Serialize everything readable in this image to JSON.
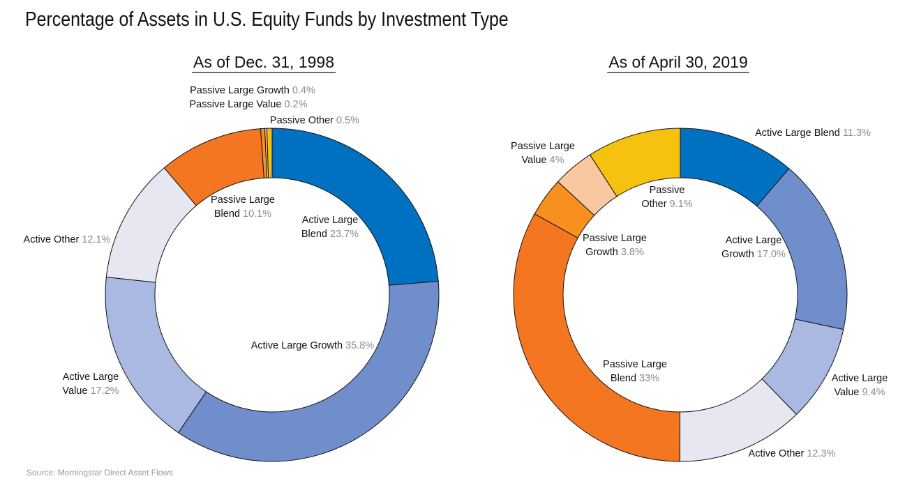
{
  "title": "Percentage of Assets in U.S. Equity Funds by Investment Type",
  "source": "Source: Morningstar Direct Asset Flows",
  "chart_data": [
    {
      "type": "pie",
      "subtitle": "As of Dec. 31, 1998",
      "slices": [
        {
          "name": "Active Large Blend",
          "value": 23.7,
          "pct_label": "23.7%",
          "color": "#0070c0"
        },
        {
          "name": "Active Large Growth",
          "value": 35.8,
          "pct_label": "35.8%",
          "color": "#718ecc"
        },
        {
          "name": "Active Large Value",
          "value": 17.2,
          "pct_label": "17.2%",
          "color": "#a9b9e2"
        },
        {
          "name": "Active Other",
          "value": 12.1,
          "pct_label": "12.1%",
          "color": "#e6e7f1"
        },
        {
          "name": "Passive Large Blend",
          "value": 10.1,
          "pct_label": "10.1%",
          "color": "#f47621"
        },
        {
          "name": "Passive Large Growth",
          "value": 0.4,
          "pct_label": "0.4%",
          "color": "#f7901e"
        },
        {
          "name": "Passive Large Value",
          "value": 0.2,
          "pct_label": "0.2%",
          "color": "#f9c8a0"
        },
        {
          "name": "Passive Other",
          "value": 0.5,
          "pct_label": "0.5%",
          "color": "#f5c20f"
        }
      ]
    },
    {
      "type": "pie",
      "subtitle": "As of April 30, 2019",
      "slices": [
        {
          "name": "Active Large Blend",
          "value": 11.3,
          "pct_label": "11.3%",
          "color": "#0070c0"
        },
        {
          "name": "Active Large Growth",
          "value": 17.0,
          "pct_label": "17.0%",
          "color": "#718ecc"
        },
        {
          "name": "Active Large Value",
          "value": 9.4,
          "pct_label": "9.4%",
          "color": "#a9b9e2"
        },
        {
          "name": "Active Other",
          "value": 12.3,
          "pct_label": "12.3%",
          "color": "#e6e7f1"
        },
        {
          "name": "Passive Large Blend",
          "value": 33,
          "pct_label": "33%",
          "color": "#f47621"
        },
        {
          "name": "Passive Large Growth",
          "value": 3.8,
          "pct_label": "3.8%",
          "color": "#f7901e"
        },
        {
          "name": "Passive Large Value",
          "value": 4,
          "pct_label": "4%",
          "color": "#f9c8a0"
        },
        {
          "name": "Passive Other",
          "value": 9.1,
          "pct_label": "9.1%",
          "color": "#f5c20f"
        }
      ]
    }
  ]
}
